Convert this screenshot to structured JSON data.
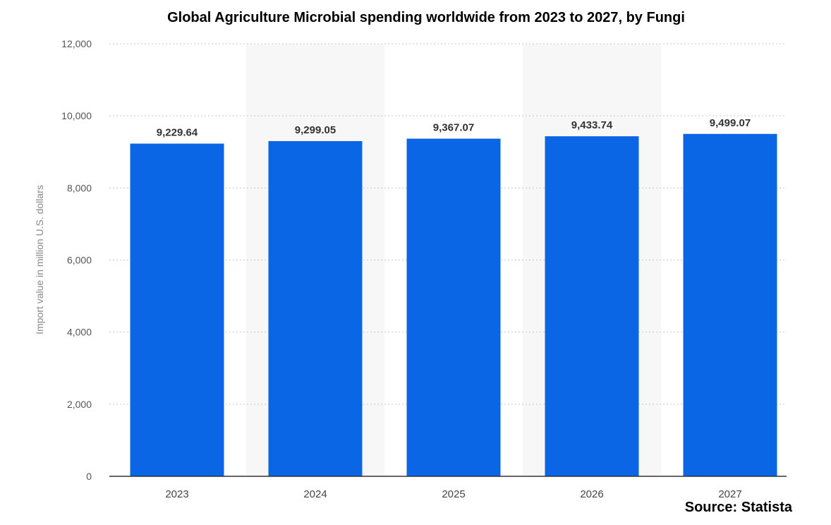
{
  "chart_data": {
    "type": "bar",
    "title": "Global Agriculture Microbial spending worldwide from 2023 to 2027, by Fungi",
    "xlabel": "",
    "ylabel": "Import value in million U.S. dollars",
    "categories": [
      "2023",
      "2024",
      "2025",
      "2026",
      "2027"
    ],
    "values": [
      9229.64,
      9299.05,
      9367.07,
      9433.74,
      9499.07
    ],
    "data_labels": [
      "9,229.64",
      "9,299.05",
      "9,367.07",
      "9,433.74",
      "9,499.07"
    ],
    "ylim": [
      0,
      12000
    ],
    "yticks": [
      0,
      2000,
      4000,
      6000,
      8000,
      10000,
      12000
    ],
    "ytick_labels": [
      "0",
      "2,000",
      "4,000",
      "6,000",
      "8,000",
      "10,000",
      "12,000"
    ],
    "grid": true,
    "bar_color": "#0a66e4",
    "band_color": "#f7f7f7"
  },
  "source": "Source: Statista"
}
